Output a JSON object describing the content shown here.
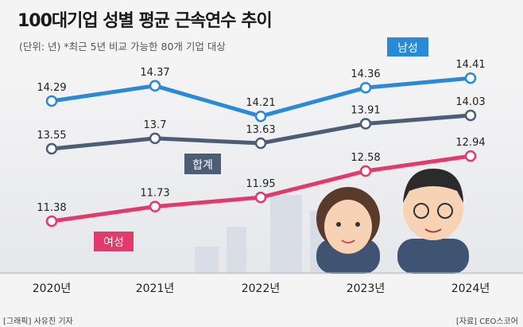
{
  "title": "100대기업 성별 평균 근속연수 추이",
  "subtitle": "(단위: 년) *최근 5년 비교 가능한 80개 기업 대상",
  "credit": "[그래픽] 사유진 기자",
  "source": "[자료] CEO스코어",
  "chart_data": {
    "type": "line",
    "categories": [
      "2020년",
      "2021년",
      "2022년",
      "2023년",
      "2024년"
    ],
    "series": [
      {
        "name": "남성",
        "values": [
          14.29,
          14.37,
          14.21,
          14.36,
          14.41
        ],
        "color": "#2a8ad6"
      },
      {
        "name": "합계",
        "values": [
          13.55,
          13.7,
          13.63,
          13.91,
          14.03
        ],
        "color": "#4b5e76"
      },
      {
        "name": "여성",
        "values": [
          11.38,
          11.73,
          11.95,
          12.58,
          12.94
        ],
        "color": "#e23a6c"
      }
    ],
    "labels": [
      [
        "14.29",
        "14.37",
        "14.21",
        "14.36",
        "14.41"
      ],
      [
        "13.55",
        "13.7",
        "13.63",
        "13.91",
        "14.03"
      ],
      [
        "11.38",
        "11.73",
        "11.95",
        "12.58",
        "12.94"
      ]
    ],
    "ylabel": "",
    "xlabel": "",
    "grid": false
  }
}
